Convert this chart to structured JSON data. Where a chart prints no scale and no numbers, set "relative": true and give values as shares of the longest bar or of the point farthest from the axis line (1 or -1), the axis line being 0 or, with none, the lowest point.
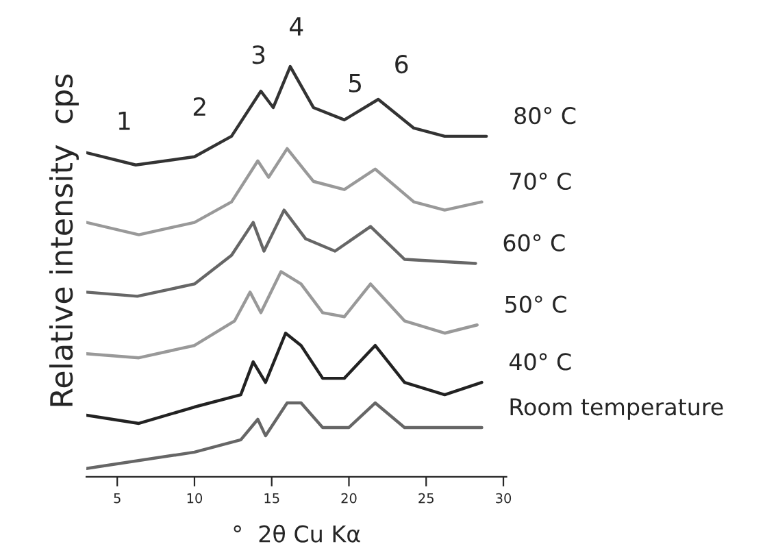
{
  "chart_data": {
    "type": "line",
    "relative": true,
    "xlabel": "°  2θ Cu Kα",
    "ylabel": "Relative intensity  cps",
    "xlim": [
      3,
      30.2
    ],
    "xticks": [
      5,
      10,
      15,
      20,
      25,
      30
    ],
    "grid": false,
    "legend": false,
    "marker": "none",
    "line_style": "solid",
    "annotations": [
      "1",
      "2",
      "3",
      "4",
      "5",
      "6"
    ],
    "series": [
      {
        "name": "80° C",
        "color": "#333333",
        "x": [
          3,
          6.2,
          10,
          12.4,
          14.3,
          15.1,
          16.2,
          17.7,
          19.7,
          21.9,
          24.2,
          26.2,
          28.9
        ],
        "values": [
          0.79,
          0.76,
          0.78,
          0.83,
          0.94,
          0.9,
          1.0,
          0.9,
          0.87,
          0.92,
          0.85,
          0.83,
          0.83
        ]
      },
      {
        "name": "70° C",
        "color": "#999999",
        "x": [
          3,
          6.4,
          10,
          12.4,
          14.1,
          14.8,
          16,
          17.7,
          19.7,
          21.7,
          24.2,
          26.2,
          28.6
        ],
        "values": [
          0.62,
          0.59,
          0.62,
          0.67,
          0.77,
          0.73,
          0.8,
          0.72,
          0.7,
          0.75,
          0.67,
          0.65,
          0.67
        ]
      },
      {
        "name": "60° C",
        "color": "#666666",
        "x": [
          3,
          6.3,
          10,
          12.4,
          13.8,
          14.5,
          15.8,
          17.2,
          19.1,
          21.4,
          23.6,
          28.2
        ],
        "values": [
          0.45,
          0.44,
          0.47,
          0.54,
          0.62,
          0.55,
          0.65,
          0.58,
          0.55,
          0.61,
          0.53,
          0.52
        ]
      },
      {
        "name": "50° C",
        "color": "#999999",
        "x": [
          3,
          6.4,
          10,
          12.6,
          13.6,
          14.3,
          15.6,
          16.9,
          18.3,
          19.7,
          21.4,
          23.6,
          26.2,
          28.3
        ],
        "values": [
          0.3,
          0.29,
          0.32,
          0.38,
          0.45,
          0.4,
          0.5,
          0.47,
          0.4,
          0.39,
          0.47,
          0.38,
          0.35,
          0.37
        ]
      },
      {
        "name": "40° C",
        "color": "#222222",
        "x": [
          3,
          6.4,
          10,
          13,
          13.8,
          14.6,
          15.9,
          16.9,
          18.3,
          19.7,
          21.7,
          23.6,
          26.2,
          28.6
        ],
        "values": [
          0.15,
          0.13,
          0.17,
          0.2,
          0.28,
          0.23,
          0.35,
          0.32,
          0.24,
          0.24,
          0.32,
          0.23,
          0.2,
          0.23
        ]
      },
      {
        "name": "Room temperature",
        "color": "#666666",
        "x": [
          3,
          10,
          13,
          14.1,
          14.6,
          16,
          16.9,
          18.3,
          20,
          21.7,
          23.6,
          28.6
        ],
        "values": [
          0.02,
          0.06,
          0.09,
          0.14,
          0.1,
          0.18,
          0.18,
          0.12,
          0.12,
          0.18,
          0.12,
          0.12
        ]
      }
    ]
  }
}
